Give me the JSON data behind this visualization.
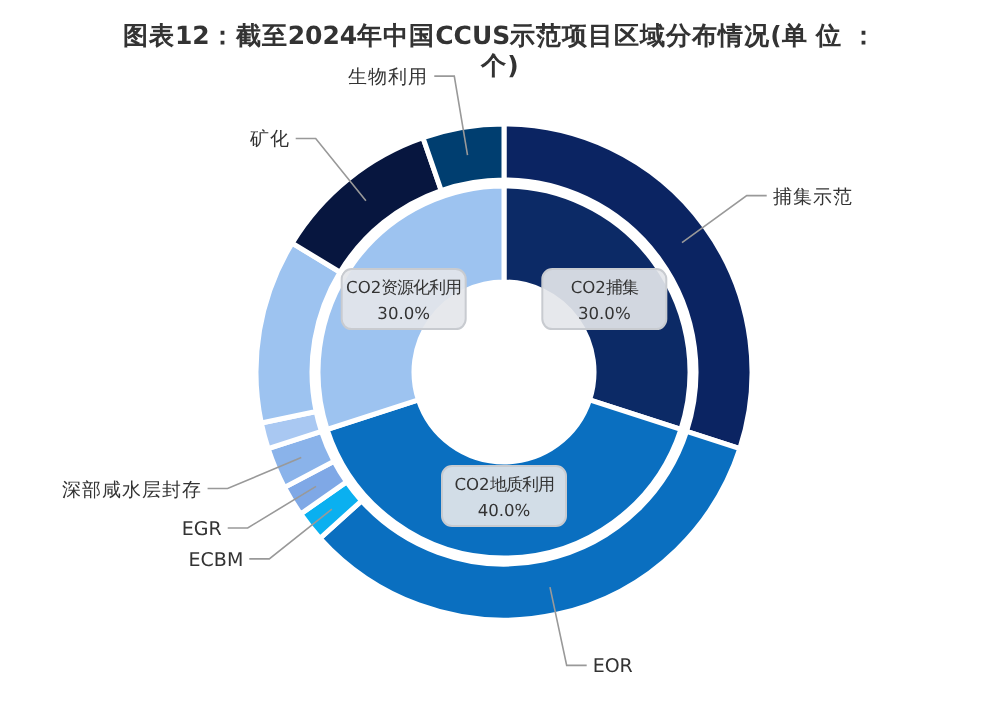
{
  "chart_data": [
    {
      "type": "donut",
      "title": "图表12：截至2024年中国CCUS示范项目区域分布情况(单 位 ：个)",
      "categories": [
        "CO2捕集",
        "CO2地质利用",
        "CO2资源化利用"
      ],
      "values": [
        30.0,
        40.0,
        30.0
      ],
      "value_labels": [
        "30.0%",
        "40.0%",
        "30.0%"
      ],
      "colors": [
        "#0c2a66",
        "#0a6fc0",
        "#9dc3f0"
      ]
    },
    {
      "type": "donut",
      "categories": [
        "捕集示范",
        "EOR",
        "ECBM",
        "EGR",
        "深部咸水层封存",
        null,
        null,
        "矿化",
        "生物利用"
      ],
      "values": [
        30.0,
        33.3,
        2.0,
        2.0,
        2.7,
        1.7,
        12.0,
        11.0,
        5.3
      ],
      "colors": [
        "#0b2462",
        "#0a6fc0",
        "#0ab0f0",
        "#7fa8e6",
        "#8ab3ea",
        "#a9c8f2",
        "#9dc3f0",
        "#07163f",
        "#003e70"
      ]
    }
  ]
}
